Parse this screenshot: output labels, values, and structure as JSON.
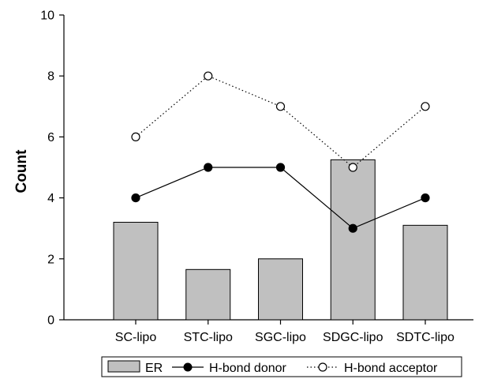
{
  "chart_data": {
    "type": "bar",
    "categories": [
      "SC-lipo",
      "STC-lipo",
      "SGC-lipo",
      "SDGC-lipo",
      "SDTC-lipo"
    ],
    "series": [
      {
        "name": "ER",
        "kind": "bar",
        "values": [
          3.2,
          1.65,
          2.0,
          5.25,
          3.1
        ],
        "color": "#c0c0c0"
      },
      {
        "name": "H-bond donor",
        "kind": "line",
        "style": "solid",
        "marker": "filled-circle",
        "values": [
          4,
          5,
          5,
          3,
          4
        ],
        "color": "#000000"
      },
      {
        "name": "H-bond acceptor",
        "kind": "line",
        "style": "dotted",
        "marker": "open-circle",
        "values": [
          6,
          8,
          7,
          5,
          7
        ],
        "color": "#000000"
      }
    ],
    "xlabel": "",
    "ylabel": "Count",
    "ylim": [
      0,
      10
    ],
    "yticks": [
      "0",
      "2",
      "4",
      "6",
      "8",
      "10"
    ],
    "grid": false,
    "legend_position": "bottom"
  }
}
